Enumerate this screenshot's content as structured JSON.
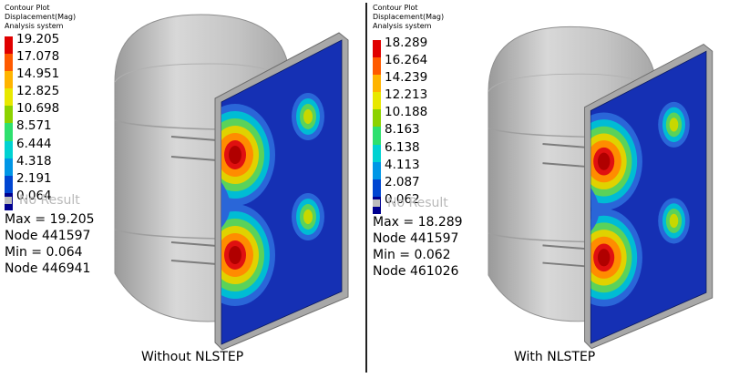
{
  "panels": [
    {
      "legend_title": "Contour Plot",
      "legend_subtitle": "Displacement(Mag)",
      "legend_system": "Analysis system",
      "ticks": [
        "19.205",
        "17.078",
        "14.951",
        "12.825",
        "10.698",
        "8.571",
        "6.444",
        "4.318",
        "2.191",
        "0.064"
      ],
      "no_result": "No Result",
      "max_line": "Max = 19.205",
      "max_node": "Node 441597",
      "min_line": "Min = 0.064",
      "min_node": "Node 446941",
      "caption": "Without NLSTEP"
    },
    {
      "legend_title": "Contour Plot",
      "legend_subtitle": "Displacement(Mag)",
      "legend_system": "Analysis system",
      "ticks": [
        "18.289",
        "16.264",
        "14.239",
        "12.213",
        "10.188",
        "8.163",
        "6.138",
        "4.113",
        "2.087",
        "0.062"
      ],
      "no_result": "No Result",
      "max_line": "Max = 18.289",
      "max_node": "Node 441597",
      "min_line": "Min = 0.062",
      "min_node": "Node 461026",
      "caption": "With NLSTEP"
    }
  ],
  "colorbar_colors": [
    "#e00000",
    "#ff5a00",
    "#ffb400",
    "#e8e800",
    "#8cd200",
    "#2ee06e",
    "#00d2d2",
    "#0096e6",
    "#0046d2",
    "#000090"
  ],
  "plate_color": "#1530b4",
  "tank_color": "#c6c6c6"
}
